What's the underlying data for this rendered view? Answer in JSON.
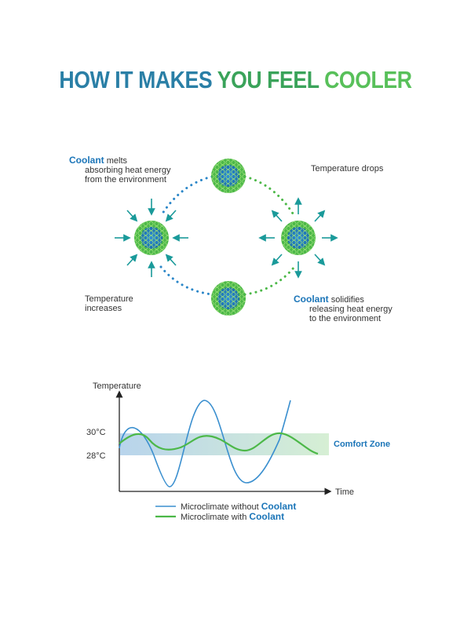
{
  "title": {
    "part1": "HOW IT MAKES ",
    "part2": "YOU FEEL ",
    "part3": "COOLER"
  },
  "colors": {
    "blue": "#1b75b8",
    "teal": "#2aa3b0",
    "green": "#4cb848",
    "arrow": "#1a9a9a"
  },
  "labels": {
    "melt_brand": "Coolant",
    "melt_line1": "melts",
    "melt_line2": "absorbing heat energy",
    "melt_line3": "from the environment",
    "drop": "Temperature drops",
    "increase_line1": "Temperature",
    "increase_line2": "increases",
    "solid_brand": "Coolant",
    "solid_line1": "solidifies",
    "solid_line2": "releasing heat energy",
    "solid_line3": "to the environment"
  },
  "chart_data": {
    "type": "line",
    "ylabel": "Temperature",
    "xlabel": "Time",
    "y_ticks": [
      "30°C",
      "28°C"
    ],
    "band_label": "Comfort Zone",
    "series": [
      {
        "name": "Microclimate without",
        "brand": "Coolant",
        "color": "#3a8fcf"
      },
      {
        "name": "Microclimate with",
        "brand": "Coolant",
        "color": "#4cb848"
      }
    ]
  }
}
